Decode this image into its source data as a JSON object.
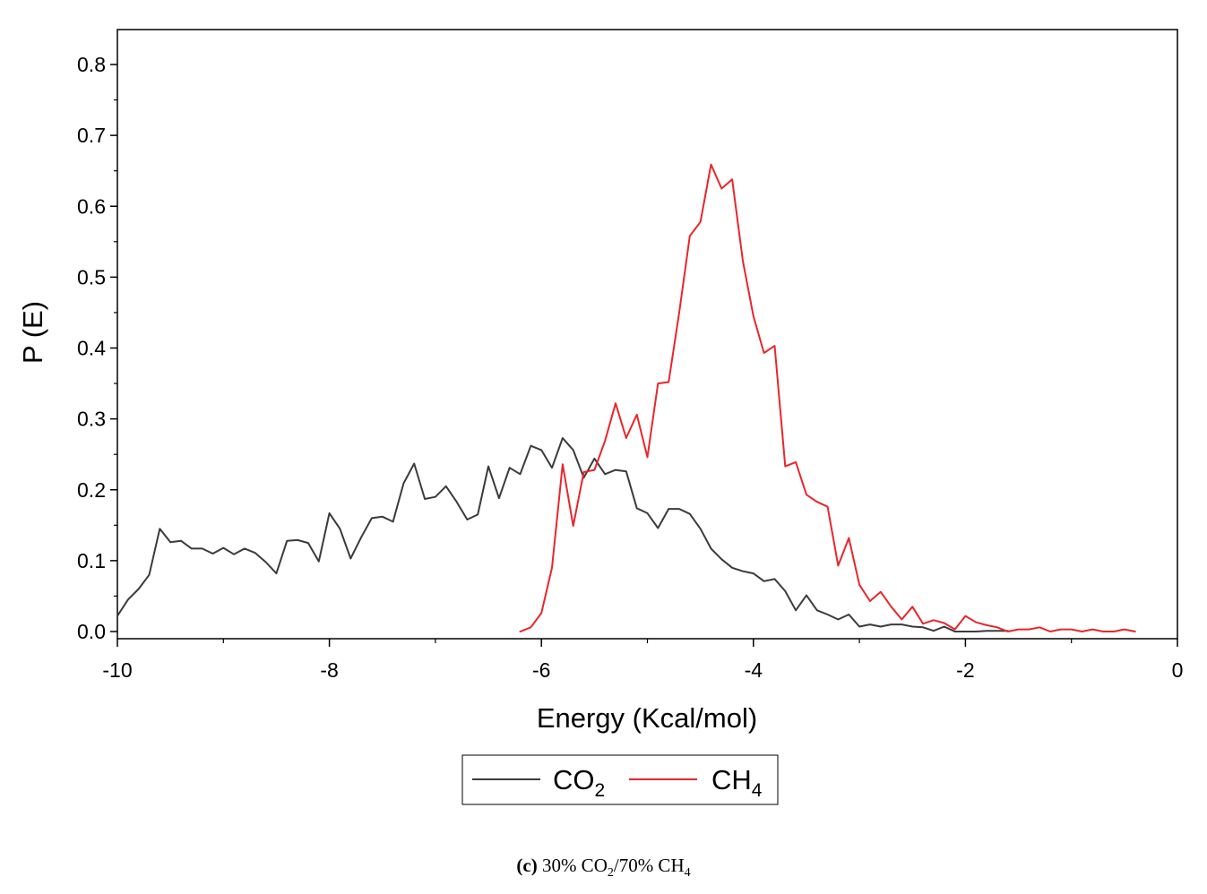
{
  "chart_data": {
    "type": "line",
    "xlabel": "Energy (Kcal/mol)",
    "ylabel": "P (E)",
    "xlim": [
      -10,
      0
    ],
    "ylim": [
      0,
      0.85
    ],
    "x_ticks": [
      -10,
      -8,
      -6,
      -4,
      -2,
      0
    ],
    "x_tick_labels": [
      "-10",
      "-8",
      "-6",
      "-4",
      "-2",
      "0"
    ],
    "y_ticks": [
      0,
      0.1,
      0.2,
      0.3,
      0.4,
      0.5,
      0.6,
      0.7,
      0.8
    ],
    "y_tick_labels": [
      "0.0",
      "0.1",
      "0.2",
      "0.3",
      "0.4",
      "0.5",
      "0.6",
      "0.7",
      "0.8"
    ],
    "legend_position": "bottom-center",
    "series": [
      {
        "name": "CO2",
        "legend_main": "CO",
        "legend_sub": "2",
        "color": "#3b3b3b",
        "x": [
          -10.0,
          -9.9,
          -9.8,
          -9.7,
          -9.6,
          -9.5,
          -9.4,
          -9.3,
          -9.2,
          -9.1,
          -9.0,
          -8.9,
          -8.8,
          -8.7,
          -8.6,
          -8.5,
          -8.4,
          -8.3,
          -8.2,
          -8.1,
          -8.0,
          -7.9,
          -7.8,
          -7.7,
          -7.6,
          -7.5,
          -7.4,
          -7.3,
          -7.2,
          -7.1,
          -7.0,
          -6.9,
          -6.8,
          -6.7,
          -6.6,
          -6.5,
          -6.4,
          -6.3,
          -6.2,
          -6.1,
          -6.0,
          -5.9,
          -5.8,
          -5.7,
          -5.6,
          -5.5,
          -5.4,
          -5.3,
          -5.2,
          -5.1,
          -5.0,
          -4.9,
          -4.8,
          -4.7,
          -4.6,
          -4.5,
          -4.4,
          -4.3,
          -4.2,
          -4.1,
          -4.0,
          -3.9,
          -3.8,
          -3.7,
          -3.6,
          -3.5,
          -3.4,
          -3.3,
          -3.2,
          -3.1,
          -3.0,
          -2.9,
          -2.8,
          -2.7,
          -2.6,
          -2.5,
          -2.4,
          -2.3,
          -2.2,
          -2.1,
          -2.0,
          -1.9,
          -1.8,
          -1.7,
          -1.6
        ],
        "values": [
          0.022,
          0.045,
          0.06,
          0.08,
          0.145,
          0.126,
          0.128,
          0.117,
          0.117,
          0.11,
          0.118,
          0.109,
          0.117,
          0.111,
          0.098,
          0.082,
          0.128,
          0.129,
          0.125,
          0.099,
          0.167,
          0.145,
          0.103,
          0.133,
          0.16,
          0.162,
          0.155,
          0.209,
          0.237,
          0.187,
          0.19,
          0.205,
          0.183,
          0.158,
          0.165,
          0.233,
          0.188,
          0.231,
          0.222,
          0.262,
          0.256,
          0.231,
          0.273,
          0.256,
          0.217,
          0.244,
          0.222,
          0.228,
          0.226,
          0.174,
          0.167,
          0.146,
          0.173,
          0.173,
          0.166,
          0.145,
          0.117,
          0.102,
          0.09,
          0.085,
          0.082,
          0.071,
          0.074,
          0.057,
          0.03,
          0.051,
          0.03,
          0.024,
          0.017,
          0.024,
          0.007,
          0.01,
          0.007,
          0.01,
          0.01,
          0.007,
          0.006,
          0.001,
          0.007,
          0.0,
          0.0,
          0.0,
          0.001,
          0.001,
          0.001
        ]
      },
      {
        "name": "CH4",
        "legend_main": "CH",
        "legend_sub": "4",
        "color": "#e8262b",
        "x": [
          -6.2,
          -6.1,
          -6.0,
          -5.9,
          -5.8,
          -5.7,
          -5.6,
          -5.5,
          -5.4,
          -5.3,
          -5.2,
          -5.1,
          -5.0,
          -4.9,
          -4.8,
          -4.7,
          -4.6,
          -4.5,
          -4.4,
          -4.3,
          -4.2,
          -4.1,
          -4.0,
          -3.9,
          -3.8,
          -3.7,
          -3.6,
          -3.5,
          -3.4,
          -3.3,
          -3.2,
          -3.1,
          -3.0,
          -2.9,
          -2.8,
          -2.7,
          -2.6,
          -2.5,
          -2.4,
          -2.3,
          -2.2,
          -2.1,
          -2.0,
          -1.9,
          -1.8,
          -1.7,
          -1.6,
          -1.5,
          -1.4,
          -1.3,
          -1.2,
          -1.1,
          -1.0,
          -0.9,
          -0.8,
          -0.7,
          -0.6,
          -0.5,
          -0.4
        ],
        "values": [
          0.0,
          0.006,
          0.026,
          0.09,
          0.236,
          0.149,
          0.225,
          0.228,
          0.269,
          0.322,
          0.273,
          0.306,
          0.246,
          0.35,
          0.352,
          0.45,
          0.558,
          0.578,
          0.659,
          0.625,
          0.638,
          0.523,
          0.445,
          0.393,
          0.403,
          0.233,
          0.239,
          0.193,
          0.183,
          0.176,
          0.093,
          0.132,
          0.066,
          0.043,
          0.056,
          0.035,
          0.017,
          0.035,
          0.011,
          0.016,
          0.012,
          0.003,
          0.022,
          0.013,
          0.009,
          0.006,
          0.0,
          0.003,
          0.003,
          0.006,
          0.0,
          0.003,
          0.003,
          0.0,
          0.003,
          0.0,
          0.0,
          0.003,
          0.0
        ]
      }
    ]
  },
  "caption": {
    "label": "(c)",
    "parts": [
      " 30% CO",
      "2",
      "/70% CH",
      "4"
    ]
  }
}
